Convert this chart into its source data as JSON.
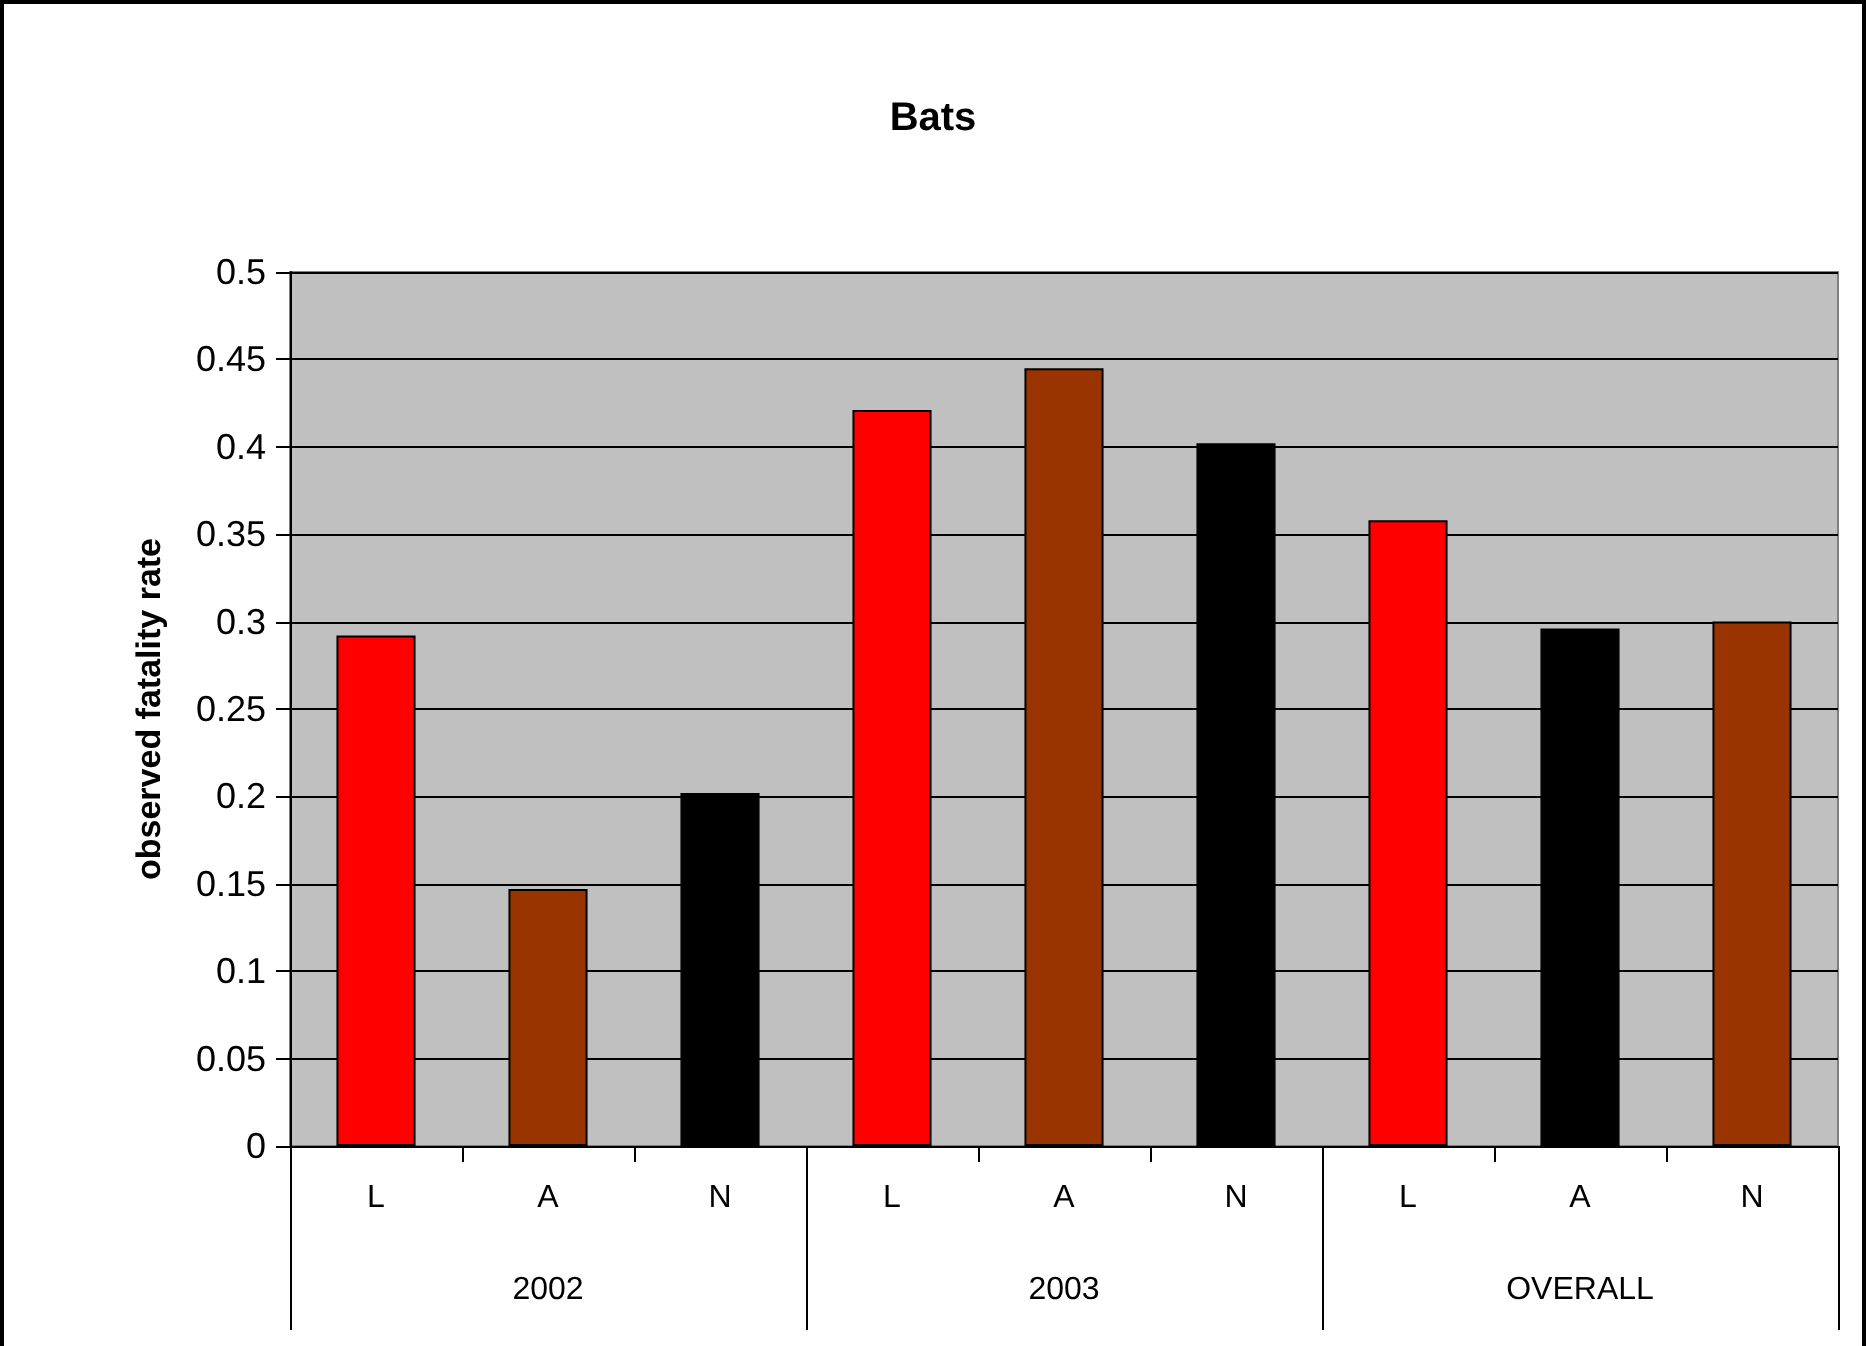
{
  "chart_data": {
    "type": "bar",
    "title": "Bats",
    "ylabel": "observed fatality rate",
    "categories": [
      "L",
      "A",
      "N",
      "L",
      "A",
      "N",
      "L",
      "A",
      "N"
    ],
    "values": [
      0.292,
      0.147,
      0.202,
      0.421,
      0.445,
      0.402,
      0.358,
      0.296,
      0.3
    ],
    "colors": [
      "#ff0000",
      "#993300",
      "#000000",
      "#ff0000",
      "#993300",
      "#000000",
      "#ff0000",
      "#000000",
      "#993300"
    ],
    "ylim": [
      0,
      0.5
    ],
    "yticks": [
      0,
      0.05,
      0.1,
      0.15,
      0.2,
      0.25,
      0.3,
      0.35,
      0.4,
      0.45,
      0.5
    ],
    "annotations": [
      "2002",
      "2003",
      "OVERALL"
    ],
    "grid": "y"
  }
}
